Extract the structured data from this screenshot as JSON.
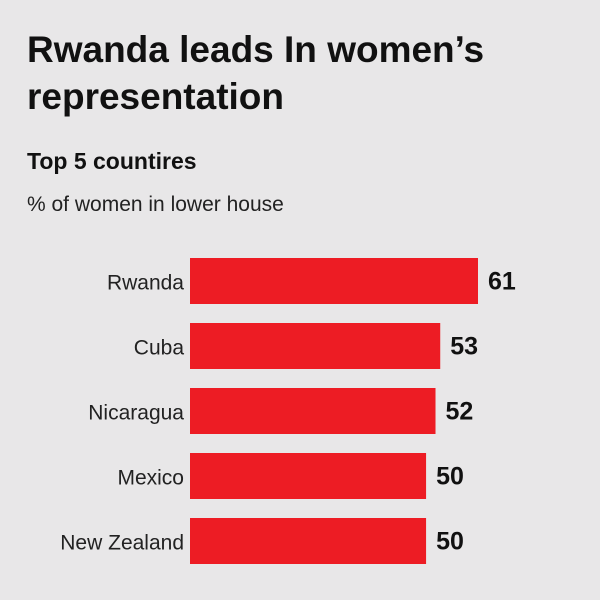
{
  "chart_data": {
    "type": "bar",
    "orientation": "horizontal",
    "title": "Rwanda leads In women’s representation",
    "subtitle": "Top 5 countires",
    "caption": "% of women in lower house",
    "categories": [
      "Rwanda",
      "Cuba",
      "Nicaragua",
      "Mexico",
      "New Zealand"
    ],
    "values": [
      61,
      53,
      52,
      50,
      50
    ],
    "color": "#ed1c24"
  }
}
